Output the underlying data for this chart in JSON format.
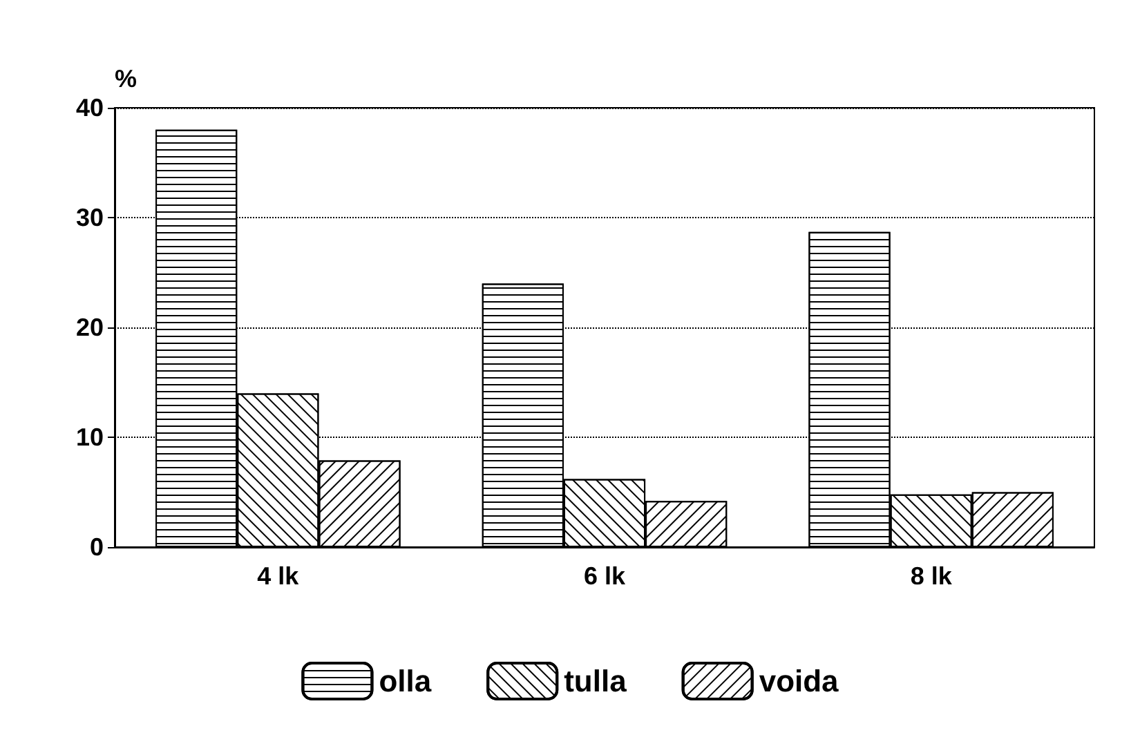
{
  "chart_data": {
    "type": "bar",
    "ylabel": "%",
    "categories": [
      "4 lk",
      "6 lk",
      "8 lk"
    ],
    "series": [
      {
        "name": "olla",
        "color": "#000000",
        "values": [
          38,
          24,
          28.7
        ]
      },
      {
        "name": "tulla",
        "color": "#000000",
        "values": [
          14,
          6.2,
          4.8
        ]
      },
      {
        "name": "voida",
        "color": "#000000",
        "values": [
          7.9,
          4.2,
          5
        ]
      }
    ],
    "ylim": [
      0,
      40
    ],
    "yticks": [
      0,
      10,
      20,
      30,
      40
    ],
    "grid": "y",
    "legend": "bottom"
  }
}
